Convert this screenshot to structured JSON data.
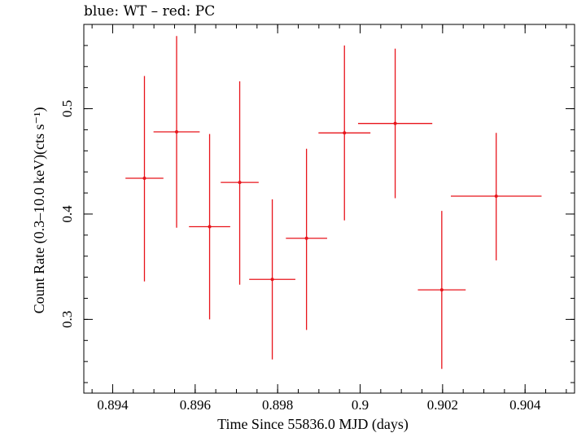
{
  "chart_data": {
    "type": "scatter",
    "title": "blue: WT – red: PC",
    "xlabel": "Time Since 55836.0 MJD (days)",
    "ylabel": "Count Rate (0.3–10.0 keV)(cts s⁻¹)",
    "xlim": [
      0.8933,
      0.9052
    ],
    "ylim": [
      0.23,
      0.58
    ],
    "x_ticks": [
      0.894,
      0.896,
      0.898,
      0.9,
      0.902,
      0.904
    ],
    "x_tick_labels": [
      "0.894",
      "0.896",
      "0.898",
      "0.9",
      "0.902",
      "0.904"
    ],
    "y_ticks": [
      0.3,
      0.4,
      0.5
    ],
    "y_tick_labels": [
      "0.3",
      "0.4",
      "0.5"
    ],
    "grid": false,
    "series": [
      {
        "name": "PC",
        "color": "#e8141b",
        "points": [
          {
            "x": 0.89477,
            "y": 0.434,
            "xerr": 0.00046,
            "yerr_low": 0.098,
            "yerr_high": 0.097
          },
          {
            "x": 0.89555,
            "y": 0.478,
            "xerr": 0.00056,
            "yerr_low": 0.091,
            "yerr_high": 0.091
          },
          {
            "x": 0.89635,
            "y": 0.388,
            "xerr": 0.0005,
            "yerr_low": 0.088,
            "yerr_high": 0.088
          },
          {
            "x": 0.89708,
            "y": 0.43,
            "xerr": 0.00046,
            "yerr_low": 0.097,
            "yerr_high": 0.096
          },
          {
            "x": 0.89787,
            "y": 0.338,
            "xerr": 0.00056,
            "yerr_low": 0.076,
            "yerr_high": 0.076
          },
          {
            "x": 0.8987,
            "y": 0.377,
            "xerr": 0.0005,
            "yerr_low": 0.087,
            "yerr_high": 0.085
          },
          {
            "x": 0.89962,
            "y": 0.477,
            "xerr": 0.00063,
            "yerr_low": 0.083,
            "yerr_high": 0.083
          },
          {
            "x": 0.90085,
            "y": 0.486,
            "xerr": 0.0009,
            "yerr_low": 0.071,
            "yerr_high": 0.071
          },
          {
            "x": 0.90198,
            "y": 0.328,
            "xerr": 0.00058,
            "yerr_low": 0.075,
            "yerr_high": 0.075
          },
          {
            "x": 0.9033,
            "y": 0.417,
            "xerr": 0.0011,
            "yerr_low": 0.061,
            "yerr_high": 0.06
          }
        ]
      }
    ]
  }
}
